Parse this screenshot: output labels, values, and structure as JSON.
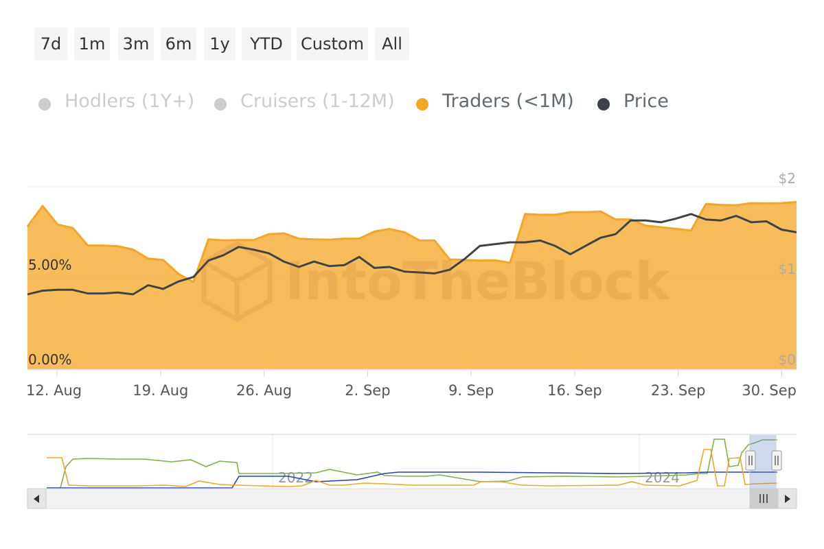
{
  "range_selector": {
    "buttons": [
      "7d",
      "1m",
      "3m",
      "6m",
      "1y",
      "YTD",
      "Custom",
      "All"
    ]
  },
  "legend": {
    "items": [
      {
        "label": "Hodlers (1Y+)",
        "visible": false,
        "color": "#7cb342"
      },
      {
        "label": "Cruisers (1-12M)",
        "visible": false,
        "color": "#1e40c8"
      },
      {
        "label": "Traders (<1M)",
        "visible": true,
        "color": "#f5a623"
      },
      {
        "label": "Price",
        "visible": true,
        "color": "#3d4349"
      }
    ]
  },
  "watermark": "IntoTheBlock",
  "navigator": {
    "year_labels": [
      "2022",
      "2024"
    ],
    "scroll_left_icon": "triangle-left-icon",
    "scroll_right_icon": "triangle-right-icon",
    "grip_icon": "grip-lines-icon"
  },
  "chart_data": {
    "type": "area",
    "x_start": "2024-08-10",
    "x_end": "2024-10-01",
    "x_ticks": [
      "12. Aug",
      "19. Aug",
      "26. Aug",
      "2. Sep",
      "9. Sep",
      "16. Sep",
      "23. Sep",
      "30. Sep"
    ],
    "left_axis": {
      "ticks": [
        "0.00%",
        "5.00%"
      ],
      "min": 0,
      "max": 10.4
    },
    "right_axis": {
      "ticks": [
        "$0",
        "$1",
        "$2"
      ],
      "min": 0,
      "max": 2
    },
    "grid": true,
    "series": [
      {
        "name": "Traders (<1M)",
        "type": "area",
        "axis": "left",
        "color": "#f5a623",
        "values": [
          8.13,
          9.3,
          8.24,
          8.05,
          7.05,
          7.05,
          7.01,
          6.82,
          6.3,
          6.23,
          5.44,
          4.96,
          7.4,
          7.34,
          7.36,
          7.36,
          7.69,
          7.74,
          7.44,
          7.4,
          7.38,
          7.44,
          7.44,
          7.84,
          7.99,
          7.8,
          7.33,
          7.33,
          6.25,
          6.23,
          6.19,
          6.21,
          6.06,
          8.84,
          8.8,
          8.8,
          8.95,
          8.95,
          8.99,
          8.53,
          8.53,
          8.18,
          8.09,
          8.0,
          7.9,
          9.42,
          9.36,
          9.34,
          9.46,
          9.45,
          9.46,
          9.53
        ]
      },
      {
        "name": "Price",
        "type": "line",
        "axis": "right",
        "color": "#3d4349",
        "values": [
          0.82,
          0.86,
          0.87,
          0.87,
          0.83,
          0.83,
          0.84,
          0.82,
          0.92,
          0.88,
          0.96,
          1.01,
          1.19,
          1.25,
          1.34,
          1.31,
          1.27,
          1.18,
          1.12,
          1.18,
          1.13,
          1.14,
          1.23,
          1.11,
          1.12,
          1.07,
          1.06,
          1.05,
          1.09,
          1.21,
          1.35,
          1.37,
          1.39,
          1.39,
          1.41,
          1.35,
          1.26,
          1.35,
          1.44,
          1.48,
          1.63,
          1.63,
          1.61,
          1.65,
          1.7,
          1.64,
          1.63,
          1.68,
          1.61,
          1.62,
          1.53,
          1.5
        ]
      }
    ]
  }
}
